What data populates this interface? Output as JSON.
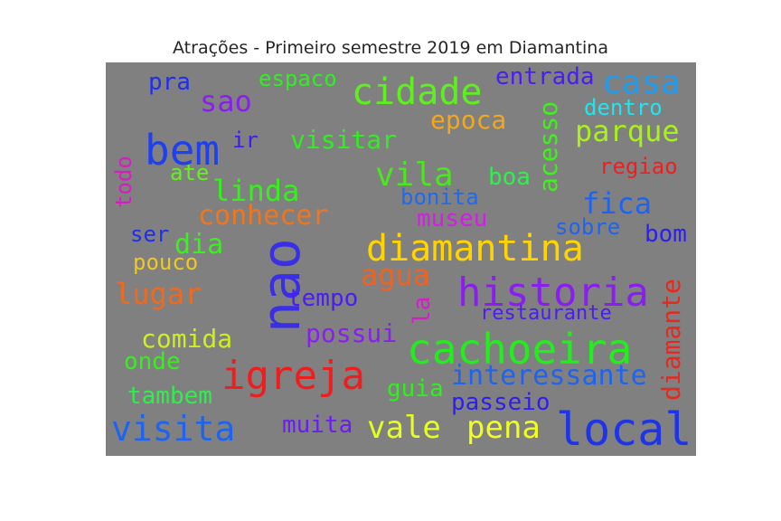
{
  "title": "Atrações - Primeiro semestre 2019 em Diamantina",
  "words": [
    {
      "text": "nao",
      "color": "#3a2ee6"
    },
    {
      "text": "local",
      "color": "#1e34e8"
    },
    {
      "text": "historia",
      "color": "#8a1ef0"
    },
    {
      "text": "cachoeira",
      "color": "#22ee1e"
    },
    {
      "text": "diamantina",
      "color": "#ffd400"
    },
    {
      "text": "igreja",
      "color": "#ee1e1e"
    },
    {
      "text": "bem",
      "color": "#1e40f0"
    },
    {
      "text": "cidade",
      "color": "#5ef01e"
    },
    {
      "text": "visita",
      "color": "#1e64f0"
    },
    {
      "text": "vale",
      "color": "#e4ff1e"
    },
    {
      "text": "pena",
      "color": "#f0ff1e"
    },
    {
      "text": "vila",
      "color": "#4ae61e"
    },
    {
      "text": "casa",
      "color": "#1e9cf0"
    },
    {
      "text": "lugar",
      "color": "#f06a1e"
    },
    {
      "text": "agua",
      "color": "#f0621e"
    },
    {
      "text": "fica",
      "color": "#1e64f0"
    },
    {
      "text": "interessante",
      "color": "#1e64f0"
    },
    {
      "text": "linda",
      "color": "#36f01e"
    },
    {
      "text": "conhecer",
      "color": "#f0761e"
    },
    {
      "text": "parque",
      "color": "#a8f01e"
    },
    {
      "text": "visitar",
      "color": "#2ef01e"
    },
    {
      "text": "epoca",
      "color": "#f0a81e"
    },
    {
      "text": "sao",
      "color": "#8a1ef0"
    },
    {
      "text": "comida",
      "color": "#ccf01e"
    },
    {
      "text": "possui",
      "color": "#8a1ef0"
    },
    {
      "text": "diamante",
      "color": "#e6281e"
    },
    {
      "text": "acesso",
      "color": "#40f01e"
    },
    {
      "text": "entrada",
      "color": "#4a1ef0"
    },
    {
      "text": "espaco",
      "color": "#2ef01e"
    },
    {
      "text": "pra",
      "color": "#1e2ef0"
    },
    {
      "text": "dentro",
      "color": "#1ee6f0"
    },
    {
      "text": "ir",
      "color": "#3a1ef0"
    },
    {
      "text": "ate",
      "color": "#66f01e"
    },
    {
      "text": "todo",
      "color": "#d41ec0"
    },
    {
      "text": "boa",
      "color": "#2ef04a"
    },
    {
      "text": "bonita",
      "color": "#1e6af0"
    },
    {
      "text": "museu",
      "color": "#d41ee6"
    },
    {
      "text": "sobre",
      "color": "#1e64f0"
    },
    {
      "text": "bom",
      "color": "#2e1ef0"
    },
    {
      "text": "regiao",
      "color": "#f01e1e"
    },
    {
      "text": "ser",
      "color": "#1e2ef0"
    },
    {
      "text": "dia",
      "color": "#3af01e"
    },
    {
      "text": "pouco",
      "color": "#f0c81e"
    },
    {
      "text": "tempo",
      "color": "#4a1ef0"
    },
    {
      "text": "la",
      "color": "#d41ec8"
    },
    {
      "text": "restaurante",
      "color": "#4a1ef0"
    },
    {
      "text": "onde",
      "color": "#36f01e"
    },
    {
      "text": "tambem",
      "color": "#2ef04a"
    },
    {
      "text": "guia",
      "color": "#2ef01e"
    },
    {
      "text": "passeio",
      "color": "#2e1ef0"
    },
    {
      "text": "muita",
      "color": "#6a1ef0"
    }
  ]
}
